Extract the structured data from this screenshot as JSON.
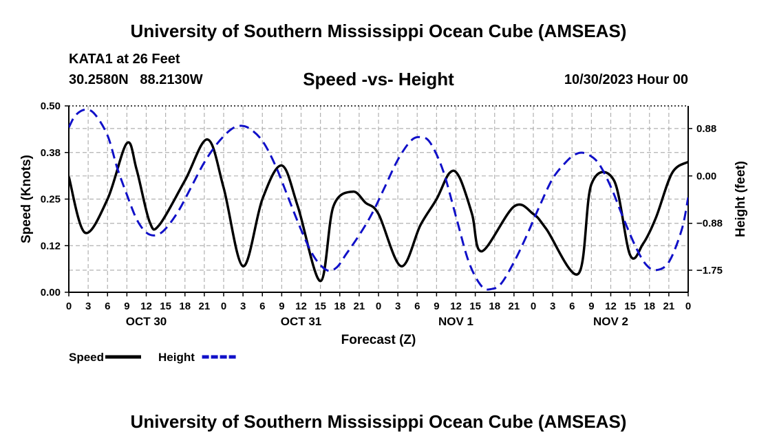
{
  "header": {
    "title": "University of Southern Mississippi Ocean Cube (AMSEAS)",
    "station": "KATA1 at 26 Feet",
    "coords": "30.2580N   88.2130W",
    "subtitle": "Speed -vs- Height",
    "datetime": "10/30/2023 Hour 00"
  },
  "footer": {
    "title": "University of Southern Mississippi Ocean Cube (AMSEAS)"
  },
  "colors": {
    "speed": "#000000",
    "height": "#1010c8",
    "grid": "#b0b0b0"
  },
  "chart_data": {
    "type": "line",
    "xlabel": "Forecast (Z)",
    "ylabel": "Speed (Knots)",
    "ylabel_right": "Height (feet)",
    "x_range": [
      0,
      96
    ],
    "ylim": [
      0,
      0.5
    ],
    "ylim_right": [
      -2.16,
      1.3
    ],
    "x_ticks": [
      0,
      3,
      6,
      9,
      12,
      15,
      18,
      21,
      24,
      27,
      30,
      33,
      36,
      39,
      42,
      45,
      48,
      51,
      54,
      57,
      60,
      63,
      66,
      69,
      72,
      75,
      78,
      81,
      84,
      87,
      90,
      93,
      96
    ],
    "x_tick_labels": [
      "0",
      "3",
      "6",
      "9",
      "12",
      "15",
      "18",
      "21",
      "0",
      "3",
      "6",
      "9",
      "12",
      "15",
      "18",
      "21",
      "0",
      "3",
      "6",
      "9",
      "12",
      "15",
      "18",
      "21",
      "0",
      "3",
      "6",
      "9",
      "12",
      "15",
      "18",
      "21",
      "0"
    ],
    "day_labels": [
      {
        "label": "OCT 30",
        "x": 12
      },
      {
        "label": "OCT 31",
        "x": 36
      },
      {
        "label": "NOV 1",
        "x": 60
      },
      {
        "label": "NOV 2",
        "x": 84
      }
    ],
    "y_ticks_left": [
      0,
      0.125,
      0.25,
      0.375,
      0.5
    ],
    "y_tick_labels_left": [
      "0.00",
      "0.12",
      "0.25",
      "0.38",
      "0.50"
    ],
    "y_ticks_right": [
      0.88,
      0,
      -0.88,
      -1.75
    ],
    "y_tick_labels_right": [
      "0.88",
      "0.00",
      "−0.88",
      "−1.75"
    ],
    "series": [
      {
        "name": "Speed",
        "axis": "left",
        "style": "solid",
        "x": [
          0,
          2.5,
          6,
          9,
          10.5,
          12.5,
          14,
          18,
          21.5,
          24,
          27,
          30,
          33,
          35.5,
          39,
          41,
          44,
          46,
          48,
          51.5,
          54.5,
          57,
          59,
          60.5,
          62.5,
          64,
          69,
          72,
          74,
          79,
          81,
          84.5,
          87,
          89,
          91,
          93.5,
          96
        ],
        "values": [
          0.31,
          0.16,
          0.25,
          0.4,
          0.33,
          0.19,
          0.18,
          0.3,
          0.41,
          0.28,
          0.07,
          0.25,
          0.34,
          0.23,
          0.03,
          0.23,
          0.27,
          0.24,
          0.21,
          0.07,
          0.18,
          0.25,
          0.32,
          0.31,
          0.21,
          0.11,
          0.23,
          0.21,
          0.17,
          0.05,
          0.29,
          0.3,
          0.1,
          0.13,
          0.2,
          0.32,
          0.35
        ]
      },
      {
        "name": "Height",
        "axis": "right",
        "style": "dashed",
        "x": [
          0,
          1,
          2.5,
          4,
          6,
          7.5,
          9,
          10.5,
          12,
          13.5,
          15,
          17,
          19,
          21,
          23,
          25,
          26.5,
          28,
          30,
          32,
          34,
          36,
          38,
          40,
          41.5,
          43,
          45,
          47,
          49,
          51,
          53,
          54.5,
          56,
          58,
          60,
          62,
          64,
          65.5,
          67,
          69,
          71,
          73,
          75,
          77,
          78.5,
          80,
          82,
          84,
          86,
          88,
          89.5,
          91,
          93,
          95,
          96
        ],
        "values": [
          0.9,
          1.12,
          1.23,
          1.15,
          0.75,
          0.15,
          -0.35,
          -0.8,
          -1.05,
          -1.1,
          -0.98,
          -0.65,
          -0.2,
          0.25,
          0.6,
          0.85,
          0.93,
          0.88,
          0.65,
          0.2,
          -0.4,
          -1.0,
          -1.5,
          -1.75,
          -1.7,
          -1.45,
          -1.1,
          -0.7,
          -0.2,
          0.3,
          0.65,
          0.72,
          0.62,
          0.1,
          -0.75,
          -1.6,
          -2.05,
          -2.1,
          -2.0,
          -1.6,
          -1.1,
          -0.55,
          -0.05,
          0.25,
          0.4,
          0.42,
          0.25,
          -0.2,
          -0.8,
          -1.35,
          -1.65,
          -1.75,
          -1.6,
          -1.0,
          -0.4
        ]
      }
    ],
    "legend": [
      {
        "label": "Speed",
        "style": "solid"
      },
      {
        "label": "Height",
        "style": "dashed"
      }
    ],
    "grid": true
  }
}
